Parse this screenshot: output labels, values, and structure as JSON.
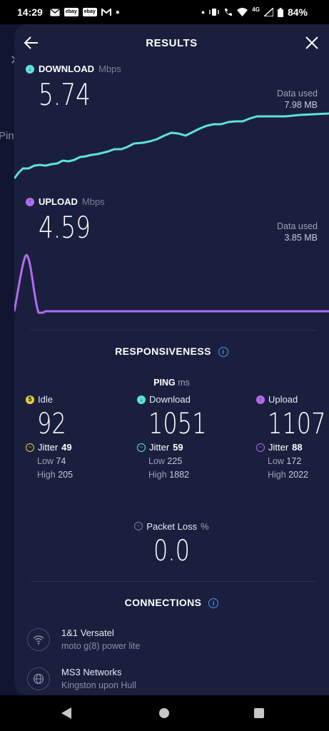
{
  "status_bar": {
    "time": "14:29",
    "badges": [
      "ebay",
      "ebay"
    ],
    "network": "4G",
    "battery": "84%"
  },
  "background": {
    "partial_label": "Ping"
  },
  "header": {
    "title": "RESULTS"
  },
  "download": {
    "label": "DOWNLOAD",
    "unit": "Mbps",
    "value": "5.74",
    "data_used_label": "Data used",
    "data_used_value": "7.98 MB",
    "color": "#5ee2dc"
  },
  "upload": {
    "label": "UPLOAD",
    "unit": "Mbps",
    "value": "4.59",
    "data_used_label": "Data used",
    "data_used_value": "3.85 MB",
    "color": "#b06cf2"
  },
  "responsiveness": {
    "title": "RESPONSIVENESS",
    "ping_label": "PING",
    "ping_unit": "ms",
    "idle": {
      "label": "Idle",
      "value": "92",
      "jitter_label": "Jitter",
      "jitter": "49",
      "low_label": "Low",
      "low": "74",
      "high_label": "High",
      "high": "205",
      "color": "#e4d23c"
    },
    "download": {
      "label": "Download",
      "value": "1051",
      "jitter_label": "Jitter",
      "jitter": "59",
      "low_label": "Low",
      "low": "225",
      "high_label": "High",
      "high": "1882",
      "color": "#5ee2dc"
    },
    "upload": {
      "label": "Upload",
      "value": "1107",
      "jitter_label": "Jitter",
      "jitter": "88",
      "low_label": "Low",
      "low": "172",
      "high_label": "High",
      "high": "2022",
      "color": "#b06cf2"
    },
    "packet_loss_label": "Packet Loss",
    "packet_loss_unit": "%",
    "packet_loss_value": "0.0"
  },
  "connections": {
    "title": "CONNECTIONS",
    "items": [
      {
        "name": "1&1 Versatel",
        "detail": "moto g(8) power lite",
        "icon": "wifi-icon"
      },
      {
        "name": "MS3 Networks",
        "detail": "Kingston upon Hull",
        "icon": "globe-icon"
      }
    ]
  }
}
